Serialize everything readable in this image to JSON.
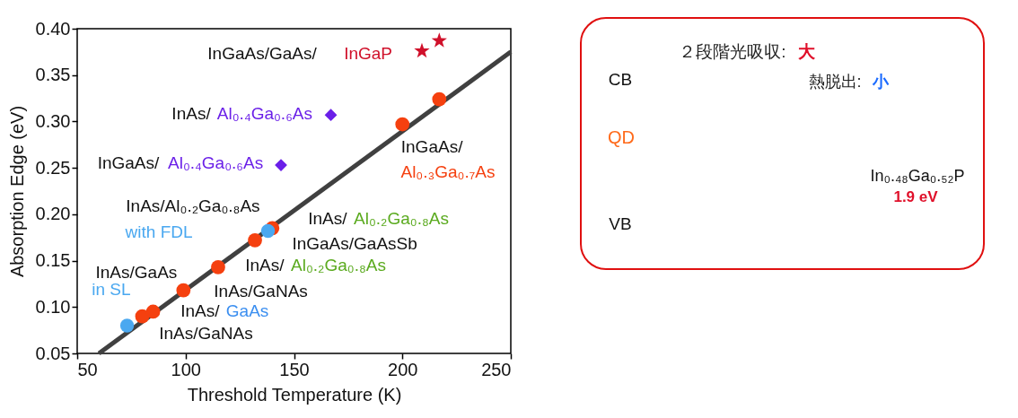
{
  "chart_data": [
    {
      "type": "scatter",
      "xlabel": "Threshold Temperature (K)",
      "ylabel": "Absorption Edge (eV)",
      "xlim": [
        50,
        250
      ],
      "ylim": [
        0.05,
        0.4
      ],
      "xticks": [
        50,
        100,
        150,
        200,
        250
      ],
      "yticks": [
        {
          "value": 0.05,
          "label": "0.05"
        },
        {
          "value": 0.1,
          "label": "0.10"
        },
        {
          "value": 0.15,
          "label": "0.15"
        },
        {
          "value": 0.2,
          "label": "0.20"
        },
        {
          "value": 0.25,
          "label": "0.25"
        },
        {
          "value": 0.3,
          "label": "0.30"
        },
        {
          "value": 0.35,
          "label": "0.35"
        },
        {
          "value": 0.4,
          "label": "0.40"
        }
      ],
      "grid": false,
      "series": [
        {
          "type": "line",
          "color": "#404040",
          "marker": "none",
          "line_style": "solid",
          "x": [
            60,
            250
          ],
          "values": [
            0.05,
            0.375
          ]
        },
        {
          "type": "scatter",
          "color": "#f5400f",
          "marker": "circle",
          "x": [
            80,
            85,
            99,
            115,
            132,
            140,
            200,
            217
          ],
          "values": [
            0.09,
            0.095,
            0.118,
            0.143,
            0.172,
            0.185,
            0.297,
            0.324
          ]
        },
        {
          "type": "scatter",
          "color": "#4aa8f0",
          "marker": "circle",
          "x": [
            73,
            138
          ],
          "values": [
            0.08,
            0.182
          ]
        },
        {
          "type": "scatter",
          "color": "#6a1fe8",
          "marker": "diamond",
          "x": [
            144,
            167
          ],
          "values": [
            0.253,
            0.307
          ]
        },
        {
          "type": "scatter",
          "color": "#d0102a",
          "marker": "star",
          "x": [
            209,
            217
          ],
          "values": [
            0.376,
            0.387
          ]
        }
      ],
      "annotations": [
        "InGaAs/GaAs/",
        "InGaP",
        "InAs/",
        "Al₀.₄Ga₀.₆As",
        "InGaAs/",
        "Al₀.₄Ga₀.₆As",
        "InGaAs/",
        "Al₀.₃Ga₀.₇As",
        "InAs/Al₀.₂Ga₀.₈As",
        "with FDL",
        "InAs/",
        "Al₀.₂Ga₀.₈As",
        "InGaAs/GaAsSb",
        "InAs/",
        "Al₀.₂Ga₀.₈As",
        "InAs/GaNAs",
        "InAs/",
        "GaAs",
        "InAs/GaNAs",
        "InAs/GaAs",
        "in SL"
      ]
    },
    {
      "type": "other",
      "annotations": [
        "２段階光吸収:",
        "大",
        "CB",
        "熱脱出:",
        "小",
        "QD",
        "In₀.₄₈Ga₀.₅₂P",
        "1.9 eV",
        "VB"
      ]
    }
  ]
}
